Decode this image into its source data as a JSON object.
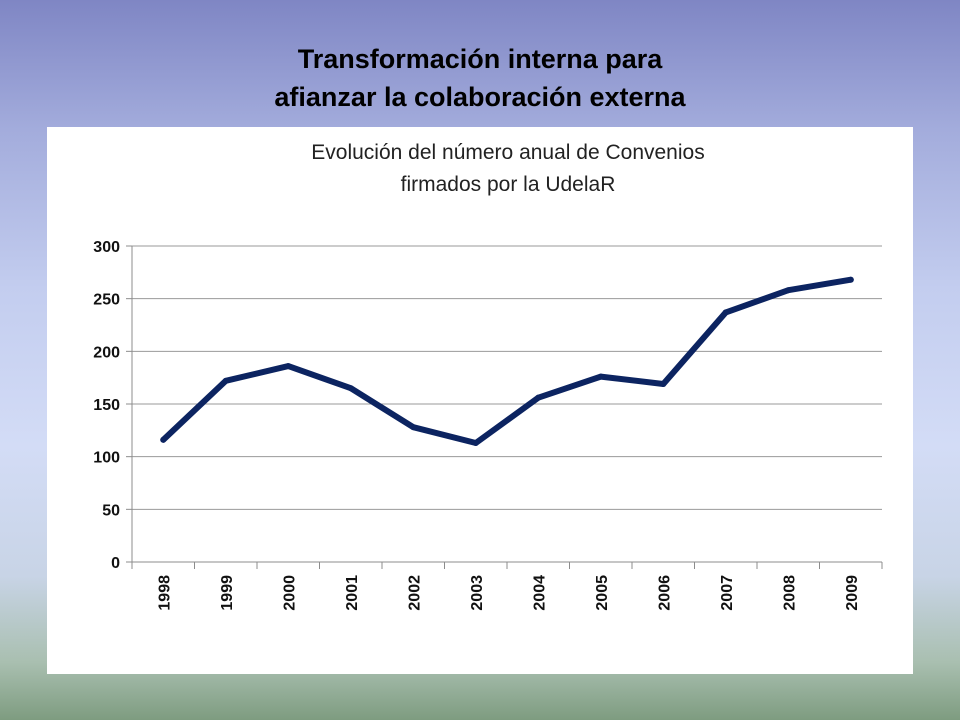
{
  "slide": {
    "title_line1": "Transformación interna para",
    "title_line2": "afianzar la colaboración externa"
  },
  "chart_data": {
    "type": "line",
    "title_lines": [
      "Evolución del número anual de Convenios",
      "firmados por la UdelaR"
    ],
    "categories": [
      "1998",
      "1999",
      "2000",
      "2001",
      "2002",
      "2003",
      "2004",
      "2005",
      "2006",
      "2007",
      "2008",
      "2009"
    ],
    "series": [
      {
        "values": [
          116,
          172,
          186,
          165,
          128,
          113,
          156,
          176,
          169,
          237,
          258,
          268
        ],
        "color": "#0c2461"
      }
    ],
    "ylim": [
      0,
      300
    ],
    "yticks": [
      0,
      50,
      100,
      150,
      200,
      250,
      300
    ],
    "grid": true,
    "legend": "none",
    "xlabel": "",
    "ylabel": ""
  }
}
